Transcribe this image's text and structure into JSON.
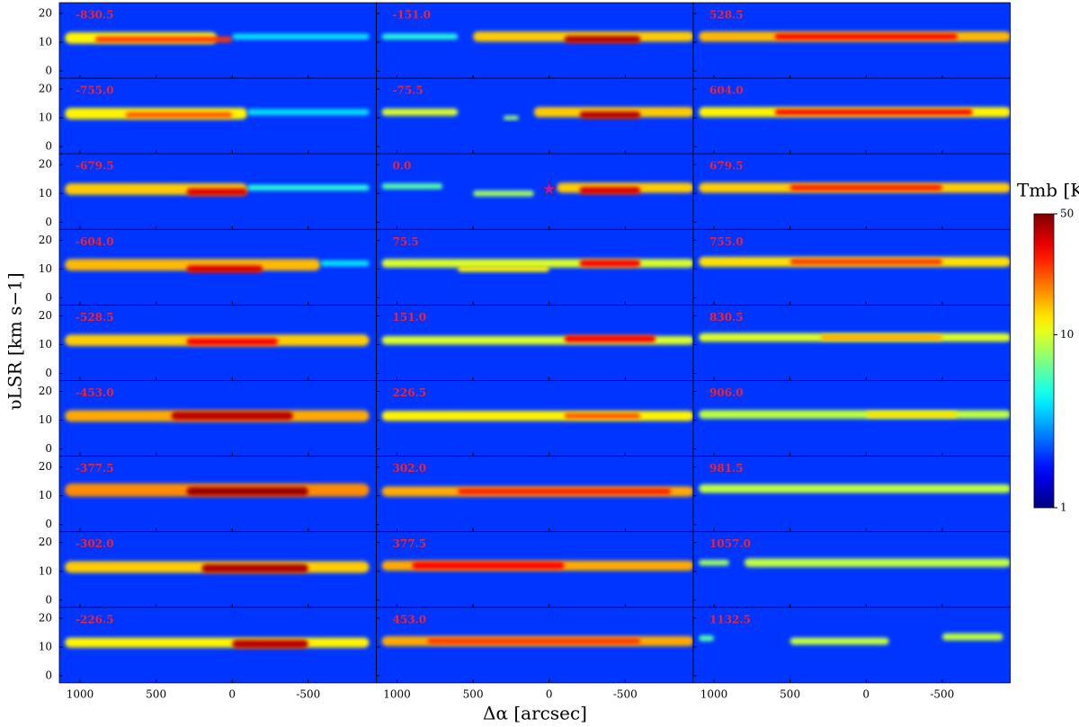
{
  "chart_data": {
    "type": "heatmap",
    "x_label": "Δα [arcsec]",
    "y_label": "υLSR [km s−1]",
    "colorbar_label": "Tmb [K]",
    "xlim": [
      1136,
      -947
    ],
    "xticks": [
      1000,
      500,
      0,
      -500
    ],
    "ylim": [
      -2.5,
      23.75
    ],
    "yticks": [
      0,
      10,
      20
    ],
    "clim": [
      1,
      50
    ],
    "cticks": [
      1,
      10,
      50
    ],
    "log_color": true,
    "colormap": "jet",
    "background_T": 2,
    "star_color": "#c010c0",
    "panels": [
      {
        "label": "-830.5",
        "segments": [
          [
            1100,
            100,
            11.5,
            4,
            12
          ],
          [
            900,
            0,
            11,
            2,
            25
          ],
          [
            0,
            -900,
            12,
            2,
            4
          ]
        ]
      },
      {
        "label": "-151.0",
        "segments": [
          [
            1100,
            600,
            12,
            2,
            5
          ],
          [
            500,
            -950,
            12,
            3.5,
            14
          ],
          [
            -100,
            -600,
            11,
            2.5,
            40
          ]
        ]
      },
      {
        "label": "528.5",
        "segments": [
          [
            1100,
            -950,
            12,
            3.5,
            15
          ],
          [
            600,
            -600,
            12,
            2,
            30
          ]
        ]
      },
      {
        "label": "-755.0",
        "segments": [
          [
            1100,
            -100,
            11.5,
            4,
            12
          ],
          [
            700,
            0,
            11,
            2,
            22
          ],
          [
            -100,
            -900,
            12,
            2,
            4
          ]
        ]
      },
      {
        "label": "-75.5",
        "segments": [
          [
            1100,
            600,
            12,
            2.5,
            10
          ],
          [
            300,
            200,
            10,
            1.5,
            8
          ],
          [
            100,
            -950,
            12,
            3.5,
            14
          ],
          [
            -200,
            -600,
            11,
            2.5,
            40
          ]
        ]
      },
      {
        "label": "604.0",
        "segments": [
          [
            1100,
            -950,
            12,
            3.5,
            12
          ],
          [
            600,
            -700,
            12,
            2,
            30
          ]
        ]
      },
      {
        "label": "-679.5",
        "segments": [
          [
            1100,
            -100,
            11.5,
            4,
            14
          ],
          [
            300,
            -100,
            10.5,
            2.5,
            35
          ],
          [
            -100,
            -900,
            12,
            2,
            5
          ]
        ]
      },
      {
        "label": "0.0",
        "star": [
          0,
          11.5
        ],
        "segments": [
          [
            1100,
            700,
            12.5,
            2,
            6
          ],
          [
            500,
            100,
            10,
            2,
            8
          ],
          [
            -50,
            -950,
            12,
            3.5,
            14
          ],
          [
            -200,
            -600,
            11,
            2.5,
            35
          ]
        ]
      },
      {
        "label": "679.5",
        "segments": [
          [
            1100,
            -950,
            12,
            3.5,
            14
          ],
          [
            500,
            -500,
            12,
            2,
            28
          ]
        ]
      },
      {
        "label": "-604.0",
        "segments": [
          [
            1100,
            -580,
            11.5,
            4,
            15
          ],
          [
            300,
            -200,
            10,
            2.5,
            35
          ],
          [
            -580,
            -900,
            12,
            2,
            4
          ]
        ]
      },
      {
        "label": "75.5",
        "segments": [
          [
            1100,
            -950,
            12,
            3,
            10
          ],
          [
            600,
            0,
            10,
            2,
            12
          ],
          [
            -200,
            -600,
            12,
            2.5,
            30
          ]
        ]
      },
      {
        "label": "755.0",
        "segments": [
          [
            1100,
            -950,
            12.5,
            3.5,
            13
          ],
          [
            500,
            -500,
            12.5,
            2,
            25
          ]
        ]
      },
      {
        "label": "-528.5",
        "segments": [
          [
            1100,
            -900,
            11.5,
            4,
            14
          ],
          [
            300,
            -300,
            11,
            2.5,
            30
          ]
        ]
      },
      {
        "label": "151.0",
        "segments": [
          [
            1100,
            -950,
            11.5,
            3,
            10
          ],
          [
            -100,
            -700,
            12,
            2.5,
            30
          ]
        ]
      },
      {
        "label": "830.5",
        "segments": [
          [
            1100,
            -950,
            12.5,
            3,
            10
          ],
          [
            300,
            -500,
            12.5,
            2,
            16
          ]
        ]
      },
      {
        "label": "-453.0",
        "segments": [
          [
            1100,
            -900,
            11.5,
            4,
            16
          ],
          [
            400,
            -400,
            11.5,
            3,
            40
          ]
        ]
      },
      {
        "label": "226.5",
        "segments": [
          [
            1100,
            -950,
            11.5,
            3.5,
            12
          ],
          [
            -100,
            -600,
            11.5,
            2,
            22
          ]
        ]
      },
      {
        "label": "906.0",
        "segments": [
          [
            1100,
            -950,
            12,
            3,
            9
          ],
          [
            0,
            -600,
            12,
            2,
            13
          ]
        ]
      },
      {
        "label": "-377.5",
        "segments": [
          [
            1100,
            -900,
            12,
            4.5,
            18
          ],
          [
            300,
            -500,
            11.5,
            3,
            45
          ]
        ]
      },
      {
        "label": "302.0",
        "segments": [
          [
            1100,
            -950,
            11.5,
            3.5,
            16
          ],
          [
            600,
            -800,
            11.5,
            2,
            28
          ]
        ]
      },
      {
        "label": "981.5",
        "segments": [
          [
            1100,
            -950,
            12.5,
            3,
            9
          ]
        ]
      },
      {
        "label": "-302.0",
        "segments": [
          [
            1100,
            -900,
            11.5,
            4,
            14
          ],
          [
            200,
            -500,
            11,
            3,
            42
          ]
        ]
      },
      {
        "label": "377.5",
        "segments": [
          [
            1100,
            -950,
            12,
            3.5,
            16
          ],
          [
            900,
            -100,
            12,
            2.5,
            30
          ]
        ]
      },
      {
        "label": "1057.0",
        "segments": [
          [
            1100,
            900,
            13,
            2,
            8
          ],
          [
            800,
            -950,
            13,
            3,
            9
          ]
        ]
      },
      {
        "label": "-226.5",
        "segments": [
          [
            1100,
            -900,
            11.5,
            3.5,
            12
          ],
          [
            0,
            -500,
            11,
            3,
            40
          ]
        ]
      },
      {
        "label": "453.0",
        "segments": [
          [
            1100,
            -950,
            12,
            3.5,
            16
          ],
          [
            800,
            -600,
            12,
            2,
            25
          ]
        ]
      },
      {
        "label": "1132.5",
        "segments": [
          [
            1100,
            1000,
            13,
            2,
            6
          ],
          [
            500,
            -150,
            12,
            2.5,
            9
          ],
          [
            -500,
            -900,
            13.5,
            2.5,
            9
          ]
        ]
      }
    ]
  }
}
